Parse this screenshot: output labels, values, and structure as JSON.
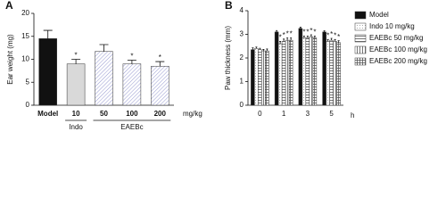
{
  "chart_data": [
    {
      "type": "bar",
      "panel_label": "A",
      "y_label": "Ear  weight (mg)",
      "x_unit": "mg/kg",
      "categories": [
        "Model",
        "10",
        "50",
        "100",
        "200"
      ],
      "values": [
        14.5,
        9,
        11.7,
        9,
        8.5
      ],
      "errors": [
        1.8,
        1.0,
        1.5,
        0.8,
        1.0
      ],
      "annotations": [
        null,
        "*",
        null,
        "*",
        "*"
      ],
      "colors": [
        "#111111",
        "#d9d9d9",
        "#7b7fc4",
        "#7b7fc4",
        "#7b7fc4"
      ],
      "hatches": [
        "none",
        "none",
        "diagonal",
        "diagonal",
        "diagonal"
      ],
      "groups": [
        {
          "name": "Indo",
          "span": [
            1,
            1
          ]
        },
        {
          "name": "EAEBc",
          "span": [
            2,
            4
          ]
        }
      ],
      "ylim": [
        0,
        20
      ],
      "yticks": [
        0,
        5,
        10,
        15,
        20
      ]
    },
    {
      "type": "grouped_bar",
      "panel_label": "B",
      "y_label": "Paw thickness (mm)",
      "x_unit": "h",
      "categories": [
        "0",
        "1",
        "3",
        "5"
      ],
      "series": [
        {
          "name": "Model",
          "color": "#111111",
          "hatch": "none",
          "values": [
            2.35,
            3.1,
            3.25,
            3.1
          ],
          "errors": [
            0.08,
            0.06,
            0.05,
            0.05
          ],
          "annotations": [
            null,
            null,
            null,
            null
          ]
        },
        {
          "name": "Indo 10 mg/kg",
          "color": "#555555",
          "hatch": "light",
          "values": [
            2.4,
            2.6,
            2.85,
            2.7
          ],
          "errors": [
            0.06,
            0.1,
            0.08,
            0.08
          ],
          "annotations": [
            null,
            "*",
            "*",
            "*"
          ]
        },
        {
          "name": "EAEBc 50 mg/kg",
          "color": "#555555",
          "hatch": "horizontal",
          "values": [
            2.35,
            2.7,
            2.85,
            2.75
          ],
          "errors": [
            0.06,
            0.1,
            0.08,
            0.08
          ],
          "annotations": [
            null,
            "*",
            "*",
            "*"
          ]
        },
        {
          "name": "EAEBc 100 mg/kg",
          "color": "#555555",
          "hatch": "vertical",
          "values": [
            2.3,
            2.75,
            2.9,
            2.7
          ],
          "errors": [
            0.06,
            0.1,
            0.08,
            0.08
          ],
          "annotations": [
            null,
            "*",
            "*",
            "*"
          ]
        },
        {
          "name": "EAEBc 200 mg/kg",
          "color": "#555555",
          "hatch": "cross",
          "values": [
            2.3,
            2.75,
            2.85,
            2.65
          ],
          "errors": [
            0.08,
            0.1,
            0.08,
            0.08
          ],
          "annotations": [
            null,
            "*",
            "*",
            "*"
          ]
        }
      ],
      "ylim": [
        0,
        4
      ],
      "yticks": [
        0,
        1,
        2,
        3,
        4
      ]
    }
  ]
}
